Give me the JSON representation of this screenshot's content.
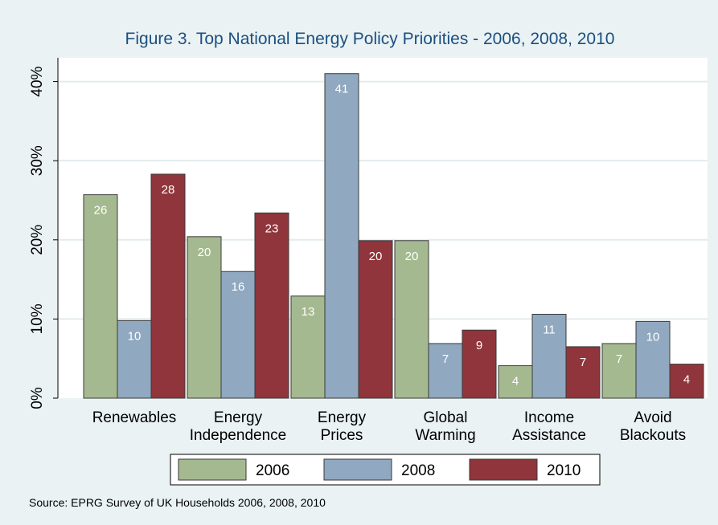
{
  "chart_data": {
    "type": "bar",
    "title": "Figure 3. Top National Energy Policy Priorities - 2006, 2008, 2010",
    "xlabel": "",
    "ylabel": "",
    "ylim": [
      0,
      43
    ],
    "yticks": [
      0,
      10,
      20,
      30,
      40
    ],
    "ytick_labels": [
      "0%",
      "10%",
      "20%",
      "30%",
      "40%"
    ],
    "categories": [
      [
        "Renewables"
      ],
      [
        "Energy",
        "Independence"
      ],
      [
        "Energy",
        "Prices"
      ],
      [
        "Global",
        "Warming"
      ],
      [
        "Income",
        "Assistance"
      ],
      [
        "Avoid",
        "Blackouts"
      ]
    ],
    "series": [
      {
        "name": "2006",
        "color": "#a5b990",
        "values": [
          25.7,
          20.4,
          12.9,
          19.9,
          4.1,
          6.9
        ],
        "labels": [
          "26",
          "20",
          "13",
          "20",
          "4",
          "7"
        ]
      },
      {
        "name": "2008",
        "color": "#90a8c0",
        "values": [
          9.8,
          16.0,
          41.0,
          6.9,
          10.6,
          9.7
        ],
        "labels": [
          "10",
          "16",
          "41",
          "7",
          "11",
          "10"
        ]
      },
      {
        "name": "2010",
        "color": "#90353b",
        "values": [
          28.3,
          23.4,
          19.9,
          8.6,
          6.5,
          4.3
        ],
        "labels": [
          "28",
          "23",
          "20",
          "9",
          "7",
          "4"
        ]
      }
    ],
    "grid": true,
    "legend_position": "bottom",
    "note": "Source:  EPRG Survey of UK Households 2006, 2008, 2010"
  }
}
